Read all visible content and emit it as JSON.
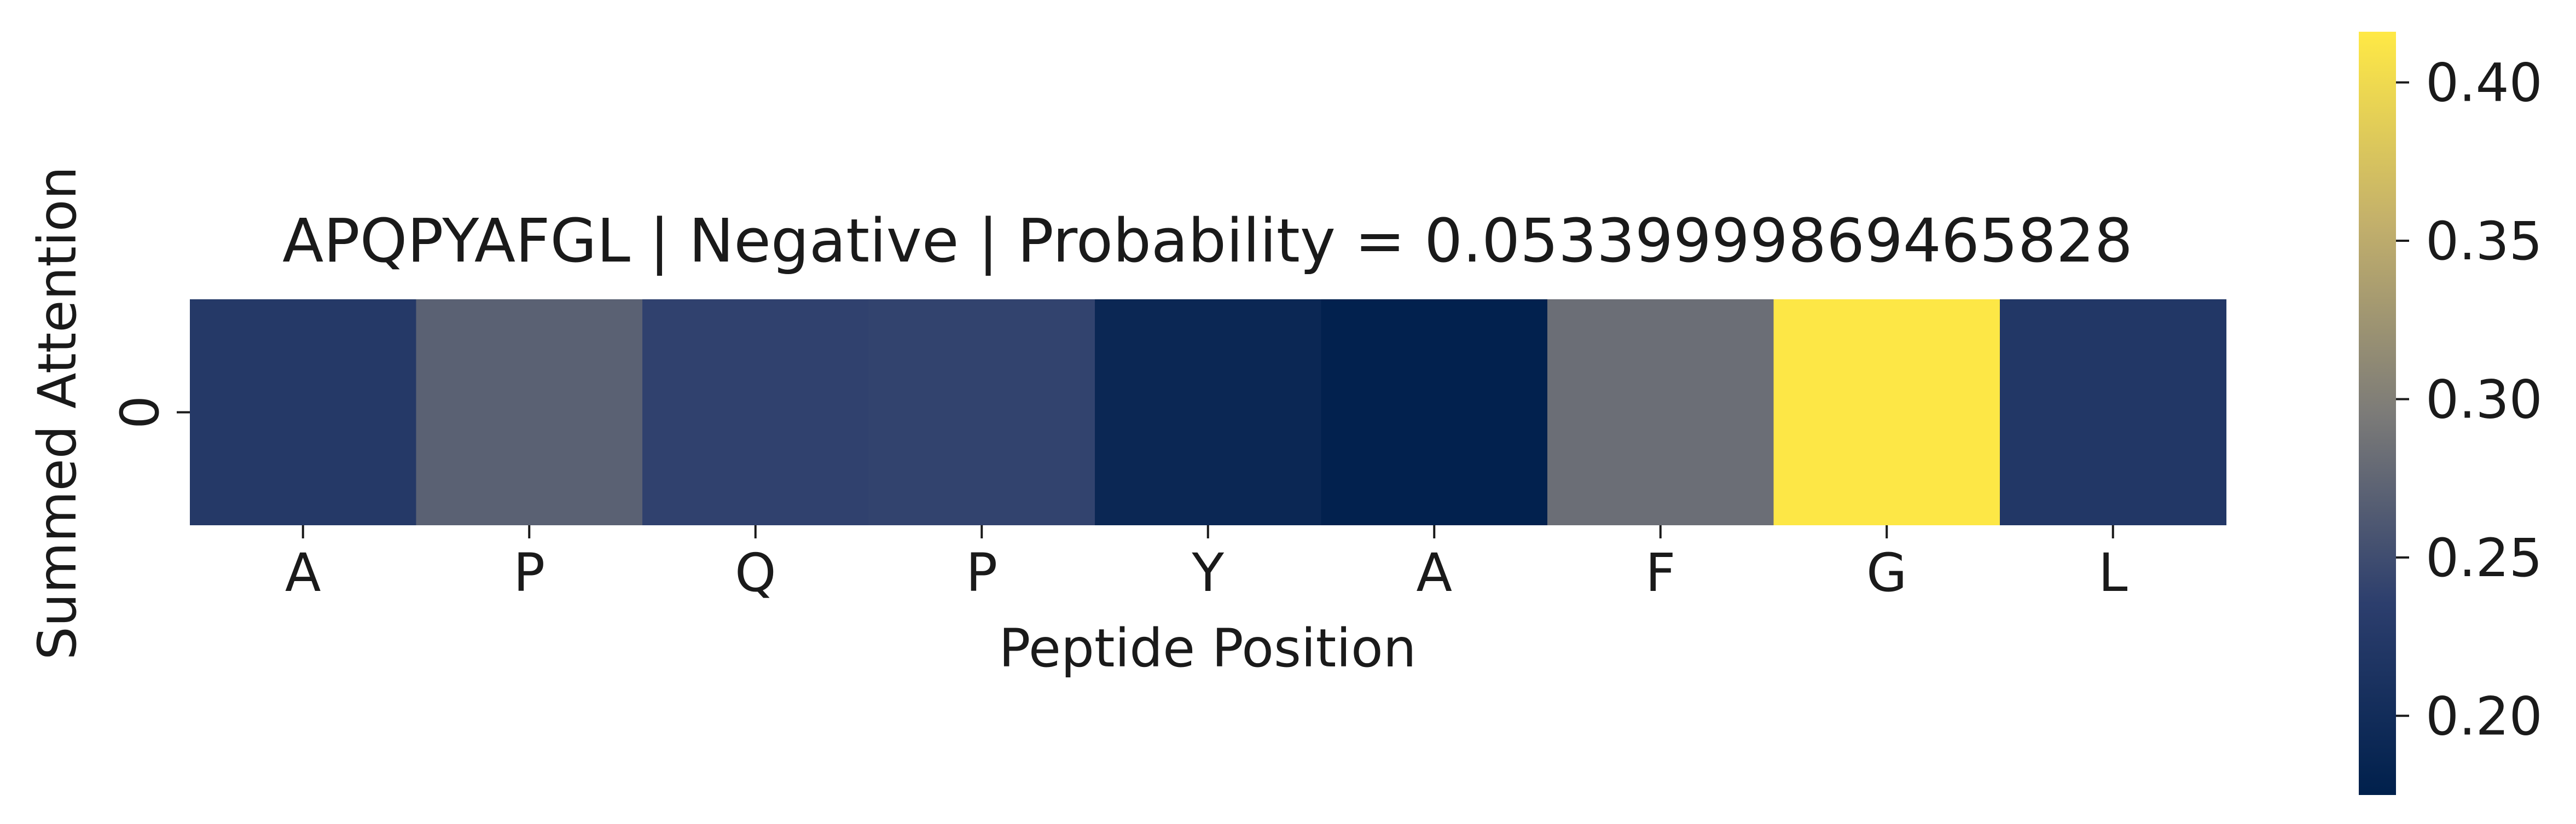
{
  "chart_data": {
    "type": "heatmap",
    "title": "APQPYAFGL | Negative | Probability = 0.05339999869465828",
    "xlabel": "Peptide Position",
    "ylabel": "Summed Attention",
    "x_tick_labels": [
      "A",
      "P",
      "Q",
      "P",
      "Y",
      "A",
      "F",
      "G",
      "L"
    ],
    "y_tick_labels": [
      "0"
    ],
    "values": [
      [
        0.225,
        0.27,
        0.238,
        0.24,
        0.19,
        0.178,
        0.283,
        0.414,
        0.222
      ]
    ],
    "colormap": "cividis",
    "colorbar": {
      "range": [
        0.175,
        0.416
      ],
      "ticks": [
        0.2,
        0.25,
        0.3,
        0.35,
        0.4
      ],
      "tick_labels": [
        "0.20",
        "0.25",
        "0.30",
        "0.35",
        "0.40"
      ]
    },
    "grid": false
  }
}
